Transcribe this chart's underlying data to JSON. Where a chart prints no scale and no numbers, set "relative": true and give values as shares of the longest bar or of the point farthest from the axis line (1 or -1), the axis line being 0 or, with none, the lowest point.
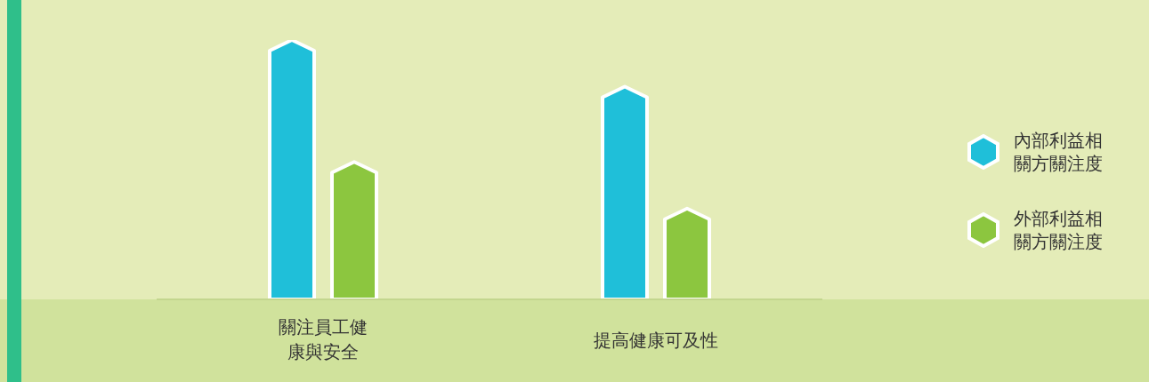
{
  "chart_data": {
    "type": "bar",
    "relative": true,
    "categories": [
      "關注員工健康與安全",
      "提高健康可及性"
    ],
    "series": [
      {
        "name": "內部利益相關方關注度",
        "color": "#1fbfd9",
        "values": [
          1,
          0.82
        ]
      },
      {
        "name": "外部利益相關方關注度",
        "color": "#8cc63f",
        "values": [
          0.53,
          0.35
        ]
      }
    ],
    "legend": "right",
    "grid": false
  }
}
